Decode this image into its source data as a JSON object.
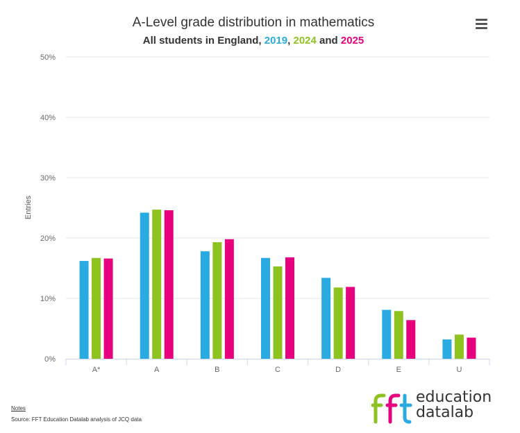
{
  "title": "A-Level grade distribution in mathematics",
  "subtitle": {
    "prefix": "All students in England,",
    "year1": "2019",
    "sep1": ",",
    "year2": "2024",
    "sep2": "and",
    "year3": "2025"
  },
  "colors": {
    "2019": "#29abe2",
    "2024": "#8dc21f",
    "2025": "#e6007e",
    "grid": "#e6e6e6",
    "axis": "#ccd6eb"
  },
  "chart_data": {
    "type": "bar",
    "title": "A-Level grade distribution in mathematics",
    "subtitle": "All students in England, 2019, 2024 and 2025",
    "xlabel": "",
    "ylabel": "Entries",
    "ylim": [
      0,
      50
    ],
    "yticks": [
      "0%",
      "10%",
      "20%",
      "30%",
      "40%",
      "50%"
    ],
    "ytick_values": [
      0,
      10,
      20,
      30,
      40,
      50
    ],
    "categories": [
      "A*",
      "A",
      "B",
      "C",
      "D",
      "E",
      "U"
    ],
    "series": [
      {
        "name": "2019",
        "values": [
          16.2,
          24.2,
          17.8,
          16.7,
          13.4,
          8.1,
          3.2
        ]
      },
      {
        "name": "2024",
        "values": [
          16.7,
          24.7,
          19.3,
          15.3,
          11.8,
          7.9,
          4.0
        ]
      },
      {
        "name": "2025",
        "values": [
          16.6,
          24.6,
          19.8,
          16.8,
          11.9,
          6.4,
          3.5
        ]
      }
    ]
  },
  "menu_icon": "hamburger-menu-icon",
  "footer": {
    "notes_label": "Notes",
    "source": "Source: FFT Education Datalab analysis of JCQ data"
  },
  "logo": {
    "mark": "fft",
    "line1": "education",
    "line2_a": "data",
    "line2_b": "lab"
  }
}
